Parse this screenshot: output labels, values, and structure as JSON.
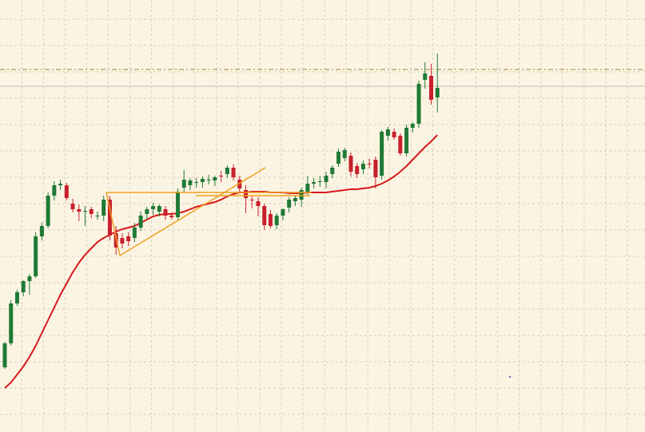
{
  "chart_data": {
    "type": "candlestick",
    "open": [
      81,
      111,
      161,
      175,
      189,
      195,
      245,
      258,
      296,
      309,
      309,
      286,
      279,
      276,
      279,
      271,
      271,
      291,
      249,
      243,
      245,
      243,
      256,
      273,
      279,
      276,
      279,
      271,
      269,
      306,
      309,
      312,
      313,
      315,
      315,
      321,
      323,
      331,
      316,
      303,
      291,
      289,
      283,
      273,
      259,
      271,
      281,
      289,
      291,
      301,
      311,
      313,
      313,
      323,
      336,
      343,
      346,
      333,
      329,
      336,
      341,
      321,
      371,
      376,
      371,
      349,
      381,
      386,
      441,
      446,
      419
    ],
    "high": [
      113,
      165,
      178,
      190,
      198,
      250,
      262,
      300,
      314,
      316,
      312,
      292,
      285,
      283,
      282,
      276,
      296,
      296,
      258,
      249,
      250,
      262,
      276,
      282,
      287,
      285,
      283,
      275,
      305,
      328,
      318,
      318,
      320,
      322,
      321,
      327,
      334,
      335,
      321,
      309,
      296,
      294,
      286,
      278,
      274,
      280,
      294,
      297,
      306,
      321,
      318,
      321,
      326,
      334,
      355,
      356,
      350,
      337,
      340,
      342,
      345,
      378,
      382,
      380,
      374,
      385,
      388,
      440,
      463,
      461,
      474
    ],
    "low": [
      79,
      108,
      158,
      170,
      172,
      193,
      240,
      255,
      290,
      303,
      290,
      275,
      264,
      258,
      268,
      266,
      264,
      240,
      222,
      230,
      233,
      238,
      252,
      266,
      272,
      270,
      266,
      266,
      266,
      300,
      303,
      306,
      306,
      310,
      308,
      313,
      318,
      315,
      300,
      274,
      280,
      270,
      253,
      255,
      254,
      265,
      275,
      283,
      282,
      297,
      305,
      307,
      305,
      318,
      332,
      339,
      320,
      318,
      323,
      330,
      305,
      316,
      365,
      366,
      346,
      345,
      375,
      381,
      430,
      410,
      400
    ],
    "close": [
      111,
      161,
      175,
      189,
      195,
      245,
      258,
      296,
      309,
      311,
      293,
      279,
      276,
      277,
      273,
      271,
      291,
      246,
      231,
      236,
      239,
      256,
      271,
      279,
      283,
      283,
      271,
      269,
      301,
      316,
      315,
      313,
      317,
      316,
      319,
      320,
      331,
      319,
      305,
      293,
      290,
      283,
      259,
      258,
      271,
      279,
      291,
      293,
      303,
      311,
      313,
      314,
      321,
      331,
      351,
      353,
      326,
      323,
      336,
      335,
      319,
      376,
      379,
      369,
      349,
      381,
      386,
      436,
      449,
      416,
      431
    ],
    "up_color": "#1f7a35",
    "down_color": "#c8202c",
    "moving_average": {
      "color": "#d7191c",
      "values": [
        55,
        62,
        72,
        82,
        94,
        108,
        124,
        140,
        156,
        172,
        186,
        200,
        212,
        222,
        230,
        238,
        243,
        247,
        251,
        254,
        256,
        258,
        262,
        266,
        270,
        272,
        273,
        273,
        274,
        276,
        279,
        282,
        284,
        286,
        288,
        291,
        295,
        298,
        300,
        300,
        301,
        301,
        301,
        300,
        300,
        300,
        299,
        299,
        299,
        300,
        300,
        300,
        300,
        301,
        302,
        303,
        304,
        304,
        305,
        306,
        308,
        311,
        315,
        320,
        326,
        333,
        341,
        349,
        357,
        364,
        372
      ]
    },
    "ylim": [
      0,
      541
    ],
    "yticks": [
      22,
      55,
      88,
      121,
      154,
      187,
      220,
      253,
      286,
      319,
      352,
      385,
      418,
      451,
      484,
      517
    ],
    "xlim": [
      -0.776,
      103.6
    ],
    "xticks": [
      2.75,
      6.25,
      9.75,
      13.25,
      16.75,
      20.25,
      23.75,
      27.25,
      30.75,
      34.25,
      37.75,
      41.25,
      44.75,
      48.25,
      51.75,
      55.25,
      58.75,
      62.25,
      65.75,
      69.25,
      72.75,
      76.25,
      79.75,
      83.25,
      86.75,
      90.25,
      93.75,
      97.25,
      100.75
    ],
    "grid": true
  }
}
